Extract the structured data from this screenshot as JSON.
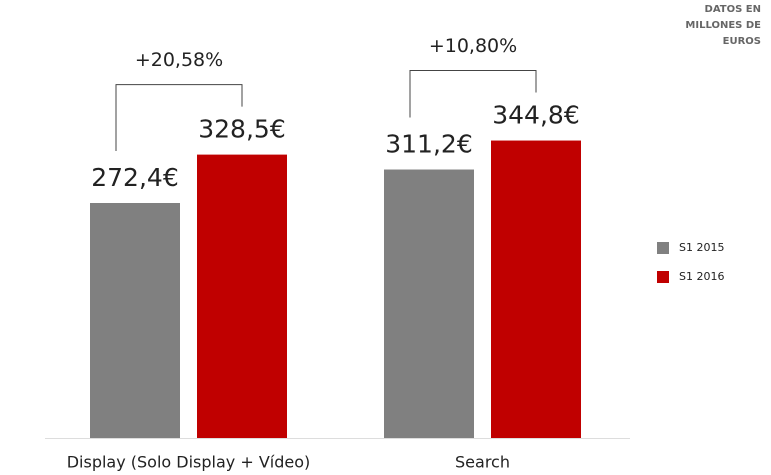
{
  "chart_data": {
    "type": "bar",
    "note": "DATOS EN MILLONES DE EUROS",
    "categories": [
      "Display (Solo Display + Vídeo)",
      "Search"
    ],
    "series": [
      {
        "name": "S1 2015",
        "color": "#808080",
        "values": [
          272.4,
          311.2
        ],
        "value_labels": [
          "272,4€",
          "311,2€"
        ]
      },
      {
        "name": "S1 2016",
        "color": "#c00000",
        "values": [
          328.5,
          344.8
        ],
        "value_labels": [
          "328,5€",
          "344,8€"
        ]
      }
    ],
    "change_labels": [
      "+20,58%",
      "+10,80%"
    ],
    "ylim": [
      0,
      500
    ],
    "legend": "right"
  }
}
